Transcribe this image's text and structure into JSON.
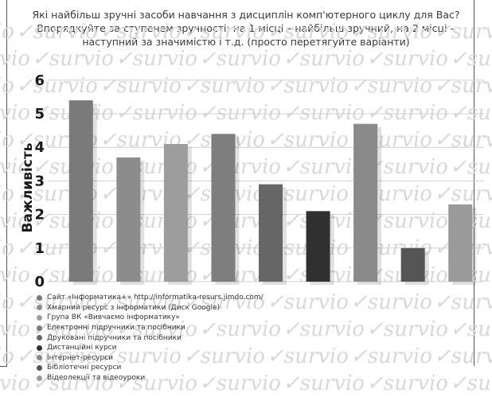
{
  "chart_data": {
    "type": "bar",
    "title": "Які найбільш зручні засоби навчання з дисциплін комп'ютерного циклу для Вас? Впорядкуйте за ступенем зручності: на 1 місці – найбільш зручний, на 2 місці – наступний за значимістю і т.д. (просто перетягуйте варіанти)",
    "ylabel": "Важливість",
    "xlabel": "",
    "ylim": [
      0,
      6
    ],
    "yticks": [
      "0",
      "1",
      "2",
      "3",
      "4",
      "5",
      "6"
    ],
    "grid": true,
    "legend_position": "bottom",
    "watermark": "survio",
    "categories": [
      "Сайт «Інформатика+» http://informatika-resurs.jimdo.com/",
      "Хмарний ресурс з інформатики (Диск Google)",
      "Група ВК «Вивчаємо інформатику»",
      "Електронні підручники та посібники",
      "Друковані підручники та посібники",
      "Дистанційні курси",
      "Інтернет-ресурси",
      "Бібліотечні ресурси",
      "Відеолекції та відеоуроки"
    ],
    "values": [
      5.4,
      3.7,
      4.1,
      4.4,
      2.9,
      2.1,
      4.7,
      1.0,
      2.3
    ],
    "colors": [
      "#7a7a7a",
      "#8c8c8c",
      "#9d9d9d",
      "#7e7e7e",
      "#666666",
      "#303030",
      "#8a8a8a",
      "#555555",
      "#9a9a9a"
    ]
  }
}
